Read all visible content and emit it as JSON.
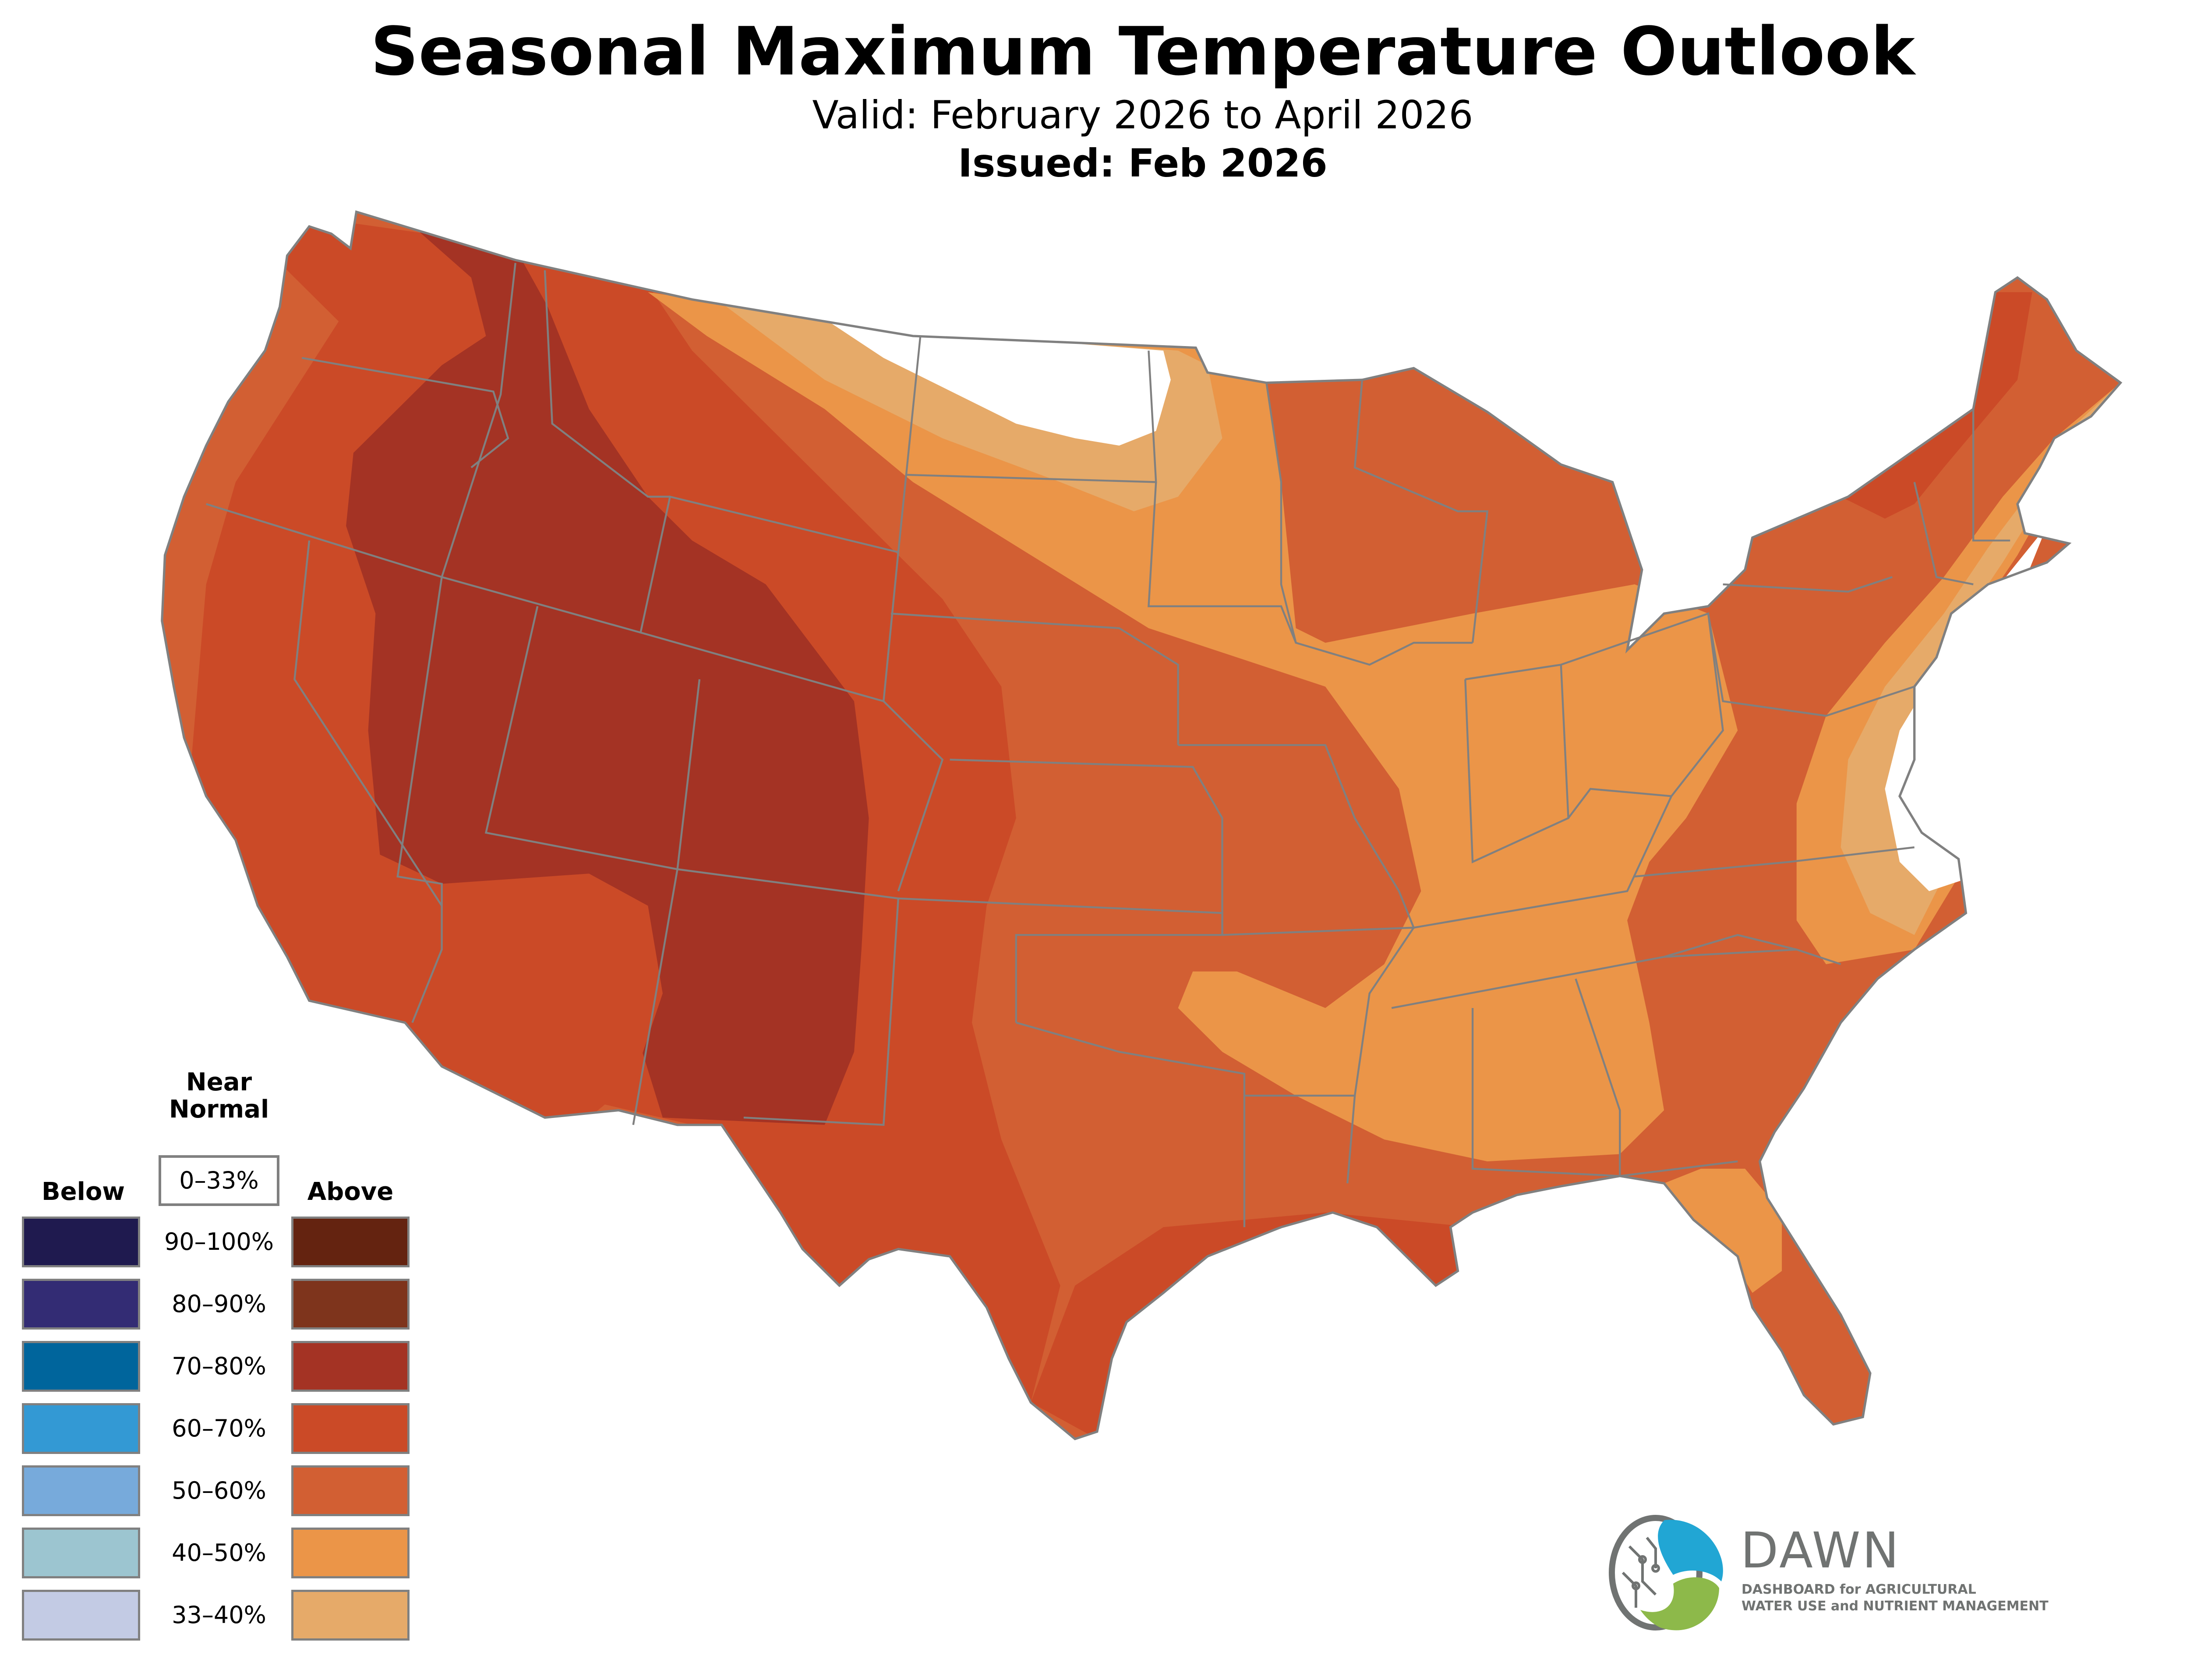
{
  "header": {
    "title": "Seasonal Maximum Temperature Outlook",
    "valid": "Valid: February 2026 to April 2026",
    "issued": "Issued: Feb 2026"
  },
  "legend": {
    "below_label": "Below",
    "above_label": "Above",
    "near_normal_label_line1": "Near",
    "near_normal_label_line2": "Normal",
    "near_normal_range": "0–33%",
    "near_normal_color": "#ffffff",
    "rows": [
      {
        "range": "90–100%",
        "below_color": "#1f1a4f",
        "above_color": "#642310"
      },
      {
        "range": "80–90%",
        "below_color": "#332c74",
        "above_color": "#7e341c"
      },
      {
        "range": "70–80%",
        "below_color": "#00659c",
        "above_color": "#a43324"
      },
      {
        "range": "60–70%",
        "below_color": "#3399d4",
        "above_color": "#cb4a27"
      },
      {
        "range": "50–60%",
        "below_color": "#77aadb",
        "above_color": "#d25f33"
      },
      {
        "range": "40–50%",
        "below_color": "#9cc5d0",
        "above_color": "#eb9548"
      },
      {
        "range": "33–40%",
        "below_color": "#c3cbe4",
        "above_color": "#e6aa69"
      }
    ]
  },
  "map": {
    "border_color": "#808080",
    "category_colors": {
      "above_70_80": "#a43324",
      "above_60_70": "#cb4a27",
      "above_50_60": "#d25f33",
      "above_40_50": "#eb9548",
      "above_33_40": "#e6aa69",
      "near_normal": "#ffffff",
      "below_33_40": "#c3cbe4"
    }
  },
  "logo": {
    "name": "DAWN",
    "tagline_line1": "DASHBOARD for AGRICULTURAL",
    "tagline_line2": "WATER USE and NUTRIENT MANAGEMENT",
    "blue": "#21a6d4",
    "green": "#8db94a",
    "gray": "#707372"
  }
}
